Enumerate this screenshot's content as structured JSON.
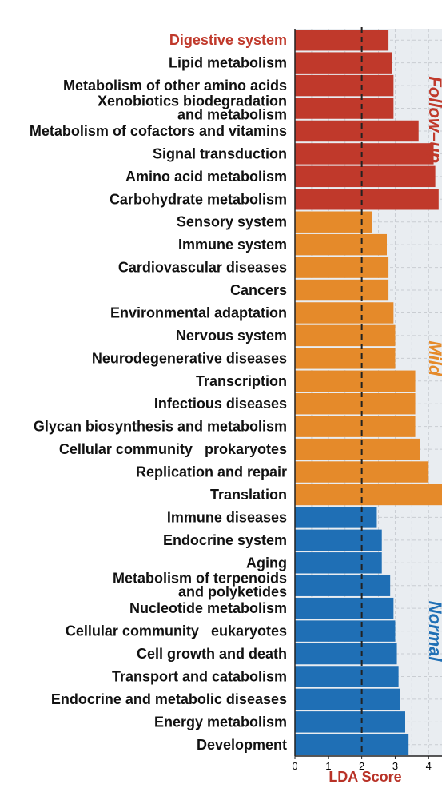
{
  "chart_data": {
    "type": "bar",
    "orientation": "horizontal",
    "xlabel": "LDA Score",
    "xlim": [
      0,
      4.4
    ],
    "xticks": [
      0,
      1,
      2,
      3,
      4
    ],
    "threshold": 2,
    "grid": true,
    "colors": {
      "Follow-up": "#c0392b",
      "Mild": "#e58a2a",
      "Normal": "#1f6fb5",
      "panel": "#e9edf1",
      "xlabel": "#b83227"
    },
    "groups": [
      {
        "name": "Follow–up",
        "key": "Follow-up",
        "categories": [
          "Digestive system",
          "Lipid metabolism",
          "Metabolism of other amino acids",
          "Xenobiotics biodegradation\nand metabolism",
          "Metabolism of cofactors and vitamins",
          "Signal transduction",
          "Amino acid metabolism",
          "Carbohydrate metabolism"
        ],
        "values": [
          2.8,
          2.9,
          2.95,
          2.95,
          3.7,
          4.15,
          4.2,
          4.3
        ]
      },
      {
        "name": "Mild",
        "key": "Mild",
        "categories": [
          "Sensory system",
          "Immune system",
          "Cardiovascular diseases",
          "Cancers",
          "Environmental adaptation",
          "Nervous system",
          "Neurodegenerative diseases",
          "Transcription",
          "Infectious diseases",
          "Glycan biosynthesis and metabolism",
          "Cellular community   prokaryotes",
          "Replication and repair",
          "Translation"
        ],
        "values": [
          2.3,
          2.75,
          2.8,
          2.8,
          2.95,
          3.0,
          3.0,
          3.6,
          3.6,
          3.6,
          3.75,
          4.0,
          4.4
        ]
      },
      {
        "name": "Normal",
        "key": "Normal",
        "categories": [
          "Immune diseases",
          "Endocrine system",
          "Aging",
          "Metabolism of terpenoids\nand polyketides",
          "Nucleotide metabolism",
          "Cellular community   eukaryotes",
          "Cell growth and death",
          "Transport and catabolism",
          "Endocrine and metabolic diseases",
          "Energy metabolism",
          "Development"
        ],
        "values": [
          2.45,
          2.6,
          2.6,
          2.85,
          2.95,
          3.0,
          3.05,
          3.1,
          3.15,
          3.3,
          3.4
        ]
      }
    ]
  }
}
